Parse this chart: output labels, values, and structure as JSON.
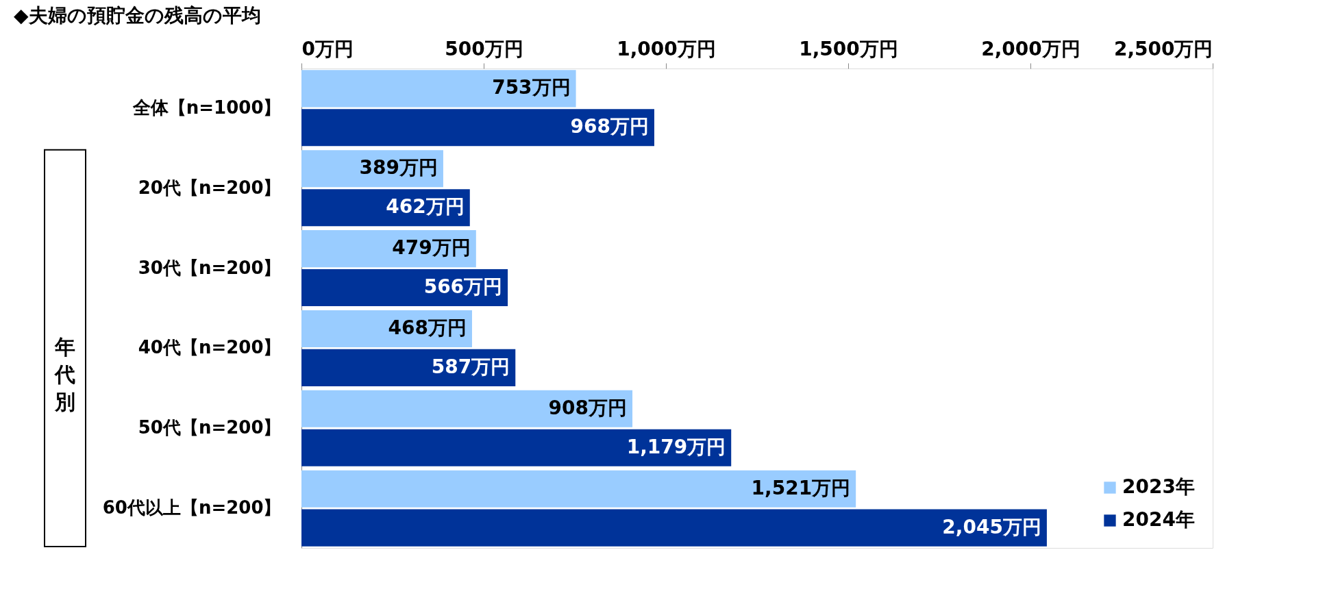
{
  "chart_data": {
    "type": "bar",
    "orientation": "horizontal",
    "title": "◆夫婦の預貯金の残高の平均",
    "categories": [
      "全体【n=1000】",
      "20代【n=200】",
      "30代【n=200】",
      "40代【n=200】",
      "50代【n=200】",
      "60代以上【n=200】"
    ],
    "series": [
      {
        "name": "2023年",
        "color": "#99ccff",
        "values": [
          753,
          389,
          479,
          468,
          908,
          1521
        ],
        "value_labels": [
          "753万円",
          "389万円",
          "479万円",
          "468万円",
          "908万円",
          "1,521万円"
        ]
      },
      {
        "name": "2024年",
        "color": "#003399",
        "values": [
          968,
          462,
          566,
          587,
          1179,
          2045
        ],
        "value_labels": [
          "968万円",
          "462万円",
          "566万円",
          "587万円",
          "1,179万円",
          "2,045万円"
        ]
      }
    ],
    "xlim": [
      0,
      2500
    ],
    "xticks": [
      {
        "value": 0,
        "label": "0万円"
      },
      {
        "value": 500,
        "label": "500万円"
      },
      {
        "value": 1000,
        "label": "1,000万円"
      },
      {
        "value": 1500,
        "label": "1,500万円"
      },
      {
        "value": 2000,
        "label": "2,000万円"
      },
      {
        "value": 2500,
        "label": "2,500万円"
      }
    ],
    "annotations": [
      "年代別"
    ],
    "grid": false,
    "legend": "bottom right"
  }
}
